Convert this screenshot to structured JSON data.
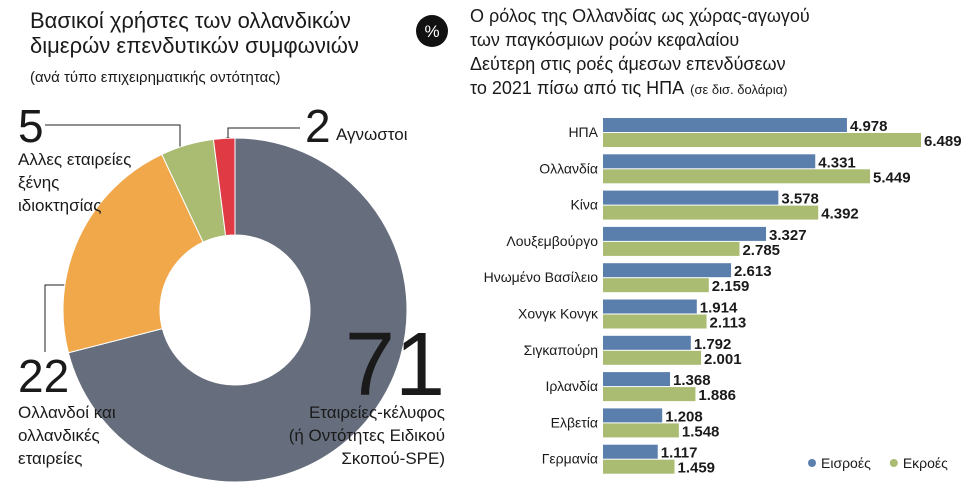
{
  "icon": "%",
  "chart_data": [
    {
      "type": "donut",
      "title": [
        "Βασικοί χρήστες των ολλανδικών",
        "διμερών επενδυτικών συμφωνιών"
      ],
      "subtitle": "(ανά τύπο επιχειρηματικής οντότητας)",
      "values": [
        71,
        22,
        5,
        2
      ],
      "labels": [
        [
          "Εταιρείες-κέλυφος",
          "(ή Οντότητες Ειδικού",
          "Σκοπού-SPE)"
        ],
        [
          "Ολλανδοί και",
          "ολλανδικές",
          "εταιρείες"
        ],
        [
          "Αλλες εταιρείες",
          "ξένης",
          "ιδιοκτησίας"
        ],
        [
          "Αγνωστοι"
        ]
      ],
      "colors": [
        "#666e7d",
        "#f0a84a",
        "#a9bc72",
        "#e03a45"
      ]
    },
    {
      "type": "hbar",
      "title": [
        "Ο ρόλος της Ολλανδίας ως χώρας-αγωγού",
        "των παγκόσμιων ροών κεφαλαίου",
        "Δεύτερη στις ροές άμεσων επενδύσεων",
        "το 2021 πίσω από τις ΗΠΑ"
      ],
      "subtitle": "(σε δισ. δολάρια)",
      "categories": [
        "ΗΠΑ",
        "Ολλανδία",
        "Κίνα",
        "Λουξεμβούργο",
        "Ηνωμένο Βασίλειο",
        "Χονγκ Κονγκ",
        "Σιγκαπούρη",
        "Ιρλανδία",
        "Ελβετία",
        "Γερμανία"
      ],
      "series": [
        {
          "name": "Εισροές",
          "color": "#5b7fad",
          "values": [
            4978,
            4331,
            3578,
            3327,
            2613,
            1914,
            1792,
            1368,
            1208,
            1117
          ],
          "value_labels": [
            "4.978",
            "4.331",
            "3.578",
            "3.327",
            "2.613",
            "1.914",
            "1.792",
            "1.368",
            "1.208",
            "1.117"
          ]
        },
        {
          "name": "Εκροές",
          "color": "#a9bc72",
          "values": [
            6489,
            5449,
            4392,
            2785,
            2159,
            2113,
            2001,
            1886,
            1548,
            1459
          ],
          "value_labels": [
            "6.489",
            "5.449",
            "4.392",
            "2.785",
            "2.159",
            "2.113",
            "2.001",
            "1.886",
            "1.548",
            "1.459"
          ]
        }
      ],
      "legend": "bottom-right"
    }
  ]
}
